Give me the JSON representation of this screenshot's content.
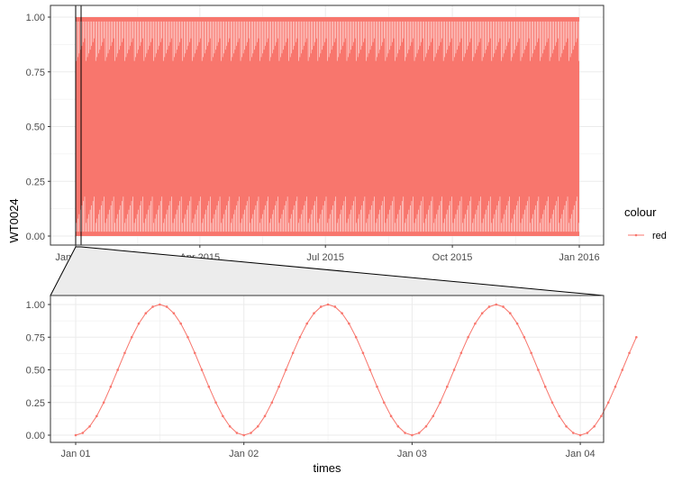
{
  "colors": {
    "series": "#f8766d",
    "grid": "#ebebeb",
    "panel_border": "#333333",
    "zoom_fill": "#ececec",
    "tick_text": "#4d4d4d"
  },
  "chart_data": [
    {
      "type": "line",
      "name": "overview",
      "x_range": [
        "2015-01-01",
        "2016-01-01"
      ],
      "x_ticks": [
        "Jan 2015",
        "Apr 2015",
        "Jul 2015",
        "Oct 2015",
        "Jan 2016"
      ],
      "x_tick_dates": [
        "2015-01-01",
        "2015-04-01",
        "2015-07-01",
        "2015-10-01",
        "2016-01-01"
      ],
      "ylabel": "WT0024",
      "ylim": [
        0,
        1
      ],
      "y_ticks": [
        "0.00",
        "0.25",
        "0.50",
        "0.75",
        "1.00"
      ],
      "y_tick_values": [
        0,
        0.25,
        0.5,
        0.75,
        1
      ],
      "series": [
        {
          "name": "red",
          "period_days": 1,
          "min": 0,
          "max": 1,
          "sampling": "hourly"
        }
      ],
      "zoom_window": [
        "2015-01-01",
        "2015-01-04"
      ],
      "grid": true
    },
    {
      "type": "line",
      "name": "detail",
      "xlabel": "times",
      "x_ticks": [
        "Jan 01",
        "Jan 02",
        "Jan 03",
        "Jan 04"
      ],
      "x_tick_days": [
        0,
        1,
        2,
        3
      ],
      "ylim": [
        0,
        1
      ],
      "y_ticks": [
        "0.00",
        "0.25",
        "0.50",
        "0.75",
        "1.00"
      ],
      "y_tick_values": [
        0,
        0.25,
        0.5,
        0.75,
        1
      ],
      "series": [
        {
          "name": "red",
          "x_start": "2015-01-01 00:00",
          "x_step_hours": 1,
          "values": [
            0.0,
            0.017,
            0.067,
            0.146,
            0.25,
            0.371,
            0.5,
            0.629,
            0.75,
            0.854,
            0.933,
            0.983,
            1.0,
            0.983,
            0.933,
            0.854,
            0.75,
            0.629,
            0.5,
            0.371,
            0.25,
            0.146,
            0.067,
            0.017,
            0.0,
            0.017,
            0.067,
            0.146,
            0.25,
            0.371,
            0.5,
            0.629,
            0.75,
            0.854,
            0.933,
            0.983,
            1.0,
            0.983,
            0.933,
            0.854,
            0.75,
            0.629,
            0.5,
            0.371,
            0.25,
            0.146,
            0.067,
            0.017,
            0.0,
            0.017,
            0.067,
            0.146,
            0.25,
            0.371,
            0.5,
            0.629,
            0.75,
            0.854,
            0.933,
            0.983,
            1.0,
            0.983,
            0.933,
            0.854,
            0.75,
            0.629,
            0.5,
            0.371,
            0.25,
            0.146,
            0.067,
            0.017,
            0.0,
            0.017,
            0.067,
            0.146,
            0.25,
            0.371,
            0.5,
            0.629,
            0.75
          ]
        }
      ],
      "grid": true
    }
  ],
  "legend": {
    "title": "colour",
    "placement": "right",
    "entries": [
      {
        "label": "red"
      }
    ]
  }
}
